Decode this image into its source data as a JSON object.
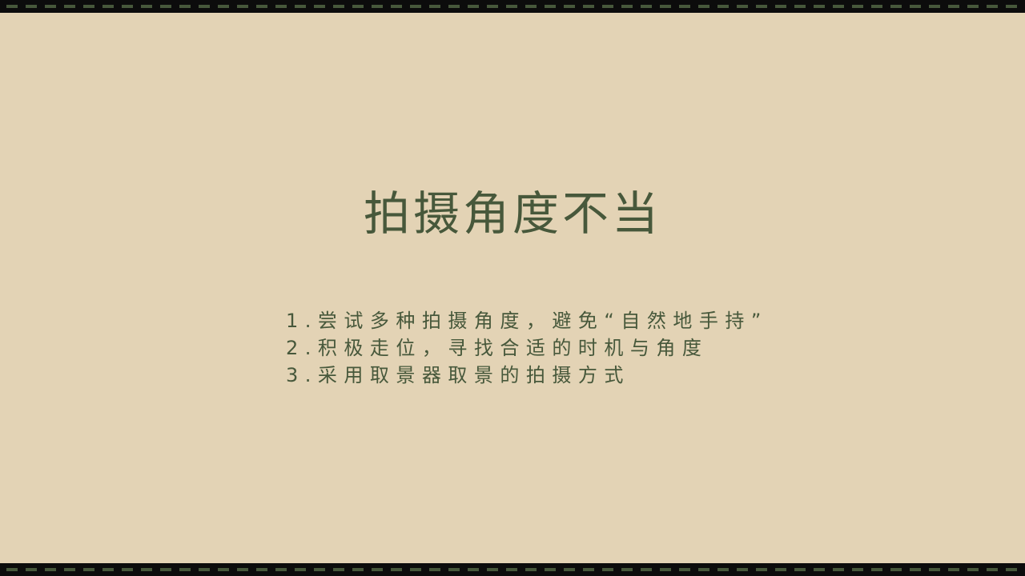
{
  "slide": {
    "title": "拍摄角度不当",
    "items": [
      "1.尝试多种拍摄角度，避免“自然地手持”",
      "2.积极走位，寻找合适的时机与角度",
      "3.采用取景器取景的拍摄方式"
    ]
  },
  "colors": {
    "background": "#e3d3b5",
    "accent": "#47583b",
    "film_strip": "#0c0c0c"
  }
}
